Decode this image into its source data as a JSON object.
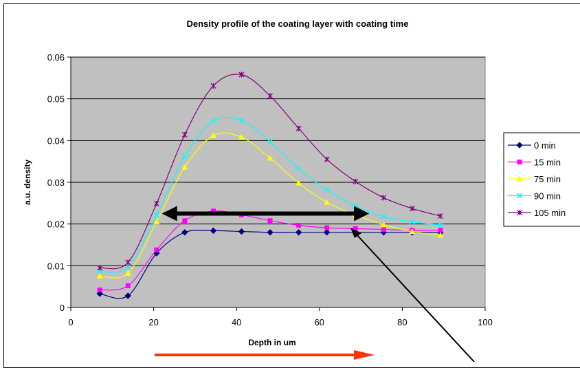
{
  "chart_data": {
    "type": "line",
    "title": "Density profile of the coating layer with coating time",
    "xlabel": "Depth in um",
    "ylabel": "a.u. density",
    "xlim": [
      0,
      100
    ],
    "ylim": [
      0,
      0.06
    ],
    "x_ticks": [
      "0",
      "20",
      "40",
      "60",
      "80",
      "100"
    ],
    "y_ticks": [
      "0",
      "0.01",
      "0.02",
      "0.03",
      "0.04",
      "0.05",
      "0.06"
    ],
    "grid": "horizontal",
    "plot_background": "#c0c0c0",
    "legend_position": "right",
    "x": [
      7,
      13.8,
      20.7,
      27.5,
      34.4,
      41.2,
      48.1,
      55,
      61.8,
      68.7,
      75.5,
      82.4,
      89.2
    ],
    "series": [
      {
        "name": "0 min",
        "color": "#000080",
        "marker": "diamond",
        "values": [
          0.0033,
          0.0028,
          0.013,
          0.018,
          0.0184,
          0.0182,
          0.018,
          0.018,
          0.018,
          0.018,
          0.018,
          0.018,
          0.018
        ]
      },
      {
        "name": "15 min",
        "color": "#ff00ff",
        "marker": "square",
        "values": [
          0.0042,
          0.0052,
          0.0138,
          0.0208,
          0.0231,
          0.0222,
          0.0208,
          0.0197,
          0.0191,
          0.0189,
          0.0187,
          0.0185,
          0.0185
        ]
      },
      {
        "name": "75 min",
        "color": "#ffff00",
        "marker": "triangle",
        "values": [
          0.0075,
          0.0082,
          0.0205,
          0.0336,
          0.0412,
          0.0408,
          0.0358,
          0.0298,
          0.0252,
          0.0222,
          0.0198,
          0.0182,
          0.0173
        ]
      },
      {
        "name": "90 min",
        "color": "#00ffff",
        "marker": "x",
        "values": [
          0.0087,
          0.0097,
          0.0222,
          0.0362,
          0.0447,
          0.0448,
          0.0397,
          0.0333,
          0.0282,
          0.0243,
          0.0218,
          0.0205,
          0.0197
        ]
      },
      {
        "name": "105 min",
        "color": "#800080",
        "marker": "star",
        "values": [
          0.0095,
          0.0108,
          0.0249,
          0.0414,
          0.0531,
          0.0558,
          0.0507,
          0.0429,
          0.0355,
          0.0302,
          0.0263,
          0.0237,
          0.0219
        ]
      }
    ],
    "annotations": [
      {
        "type": "double-arrow",
        "color": "#000000",
        "x_from": 22,
        "x_to": 72,
        "y": 0.0225
      },
      {
        "type": "arrow",
        "color": "#ff3300",
        "description": "arrow below the x-axis title, pointing right"
      },
      {
        "type": "arrow",
        "color": "#000000",
        "description": "diagonal arrow pointing up-left at the double-headed arrow"
      }
    ]
  }
}
